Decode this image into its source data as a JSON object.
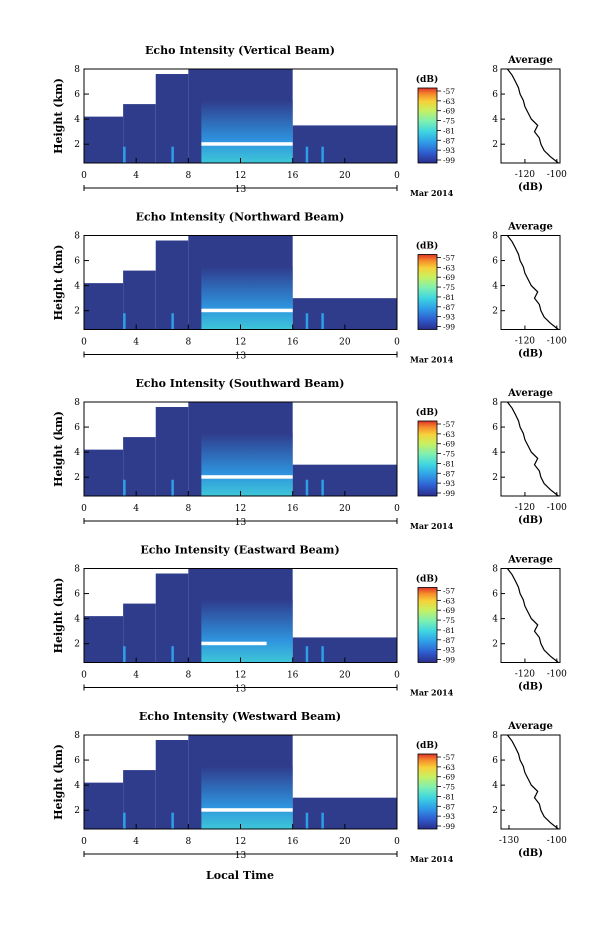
{
  "figure": {
    "xlabel_bottom": "Local Time",
    "date_label": "Mar 2014",
    "date_tick": "13",
    "x_ticks": [
      "0",
      "4",
      "8",
      "12",
      "16",
      "20",
      "0"
    ],
    "y_ticks": [
      "2",
      "4",
      "6",
      "8"
    ],
    "ylabel": "Height (km)",
    "colorbar_unit": "(dB)",
    "colorbar_ticks": [
      "-57",
      "-63",
      "-69",
      "-75",
      "-81",
      "-87",
      "-93",
      "-99"
    ],
    "colors": {
      "background_echo": "#2f3c8c",
      "axis": "#000000",
      "colormap": [
        "#2a2d8a",
        "#2f5fd0",
        "#2f9ee8",
        "#3fd6e0",
        "#7ff0b0",
        "#c8f060",
        "#f6d23a",
        "#f58a2a",
        "#e0312a"
      ]
    },
    "panels": [
      {
        "title": "Echo Intensity (Vertical Beam)",
        "avg_title": "Average",
        "avg_xticks": [
          "-120",
          "-100"
        ],
        "avg_yticks": [
          "2",
          "4",
          "6",
          "8"
        ],
        "avg_xlabel": "(dB)"
      },
      {
        "title": "Echo Intensity (Northward Beam)",
        "avg_title": "Average",
        "avg_xticks": [
          "-120",
          "-100"
        ],
        "avg_yticks": [
          "2",
          "4",
          "6",
          "8"
        ],
        "avg_xlabel": "(dB)"
      },
      {
        "title": "Echo Intensity (Southward Beam)",
        "avg_title": "Average",
        "avg_xticks": [
          "-120",
          "-100"
        ],
        "avg_yticks": [
          "2",
          "4",
          "6",
          "8"
        ],
        "avg_xlabel": "(dB)"
      },
      {
        "title": "Echo Intensity (Eastward Beam)",
        "avg_title": "Average",
        "avg_xticks": [
          "-120",
          "-100"
        ],
        "avg_yticks": [
          "2",
          "4",
          "6",
          "8"
        ],
        "avg_xlabel": "(dB)"
      },
      {
        "title": "Echo Intensity (Westward Beam)",
        "avg_title": "Average",
        "avg_xticks": [
          "-130",
          "-100"
        ],
        "avg_yticks": [
          "2",
          "4",
          "6",
          "8"
        ],
        "avg_xlabel": "(dB)"
      }
    ]
  },
  "chart_data": {
    "type": "heatmap",
    "x_range_hours": [
      0,
      24
    ],
    "y_range_km": [
      0.5,
      8
    ],
    "colorbar_range_db": [
      -99,
      -57
    ],
    "grid": false,
    "average_profile": {
      "type": "line",
      "height_km": [
        0.5,
        1.0,
        1.5,
        2.0,
        2.5,
        3.0,
        3.5,
        4.0,
        4.5,
        5.0,
        5.5,
        6.0,
        6.5,
        7.0,
        7.5,
        8.0
      ],
      "echo_db": [
        -99,
        -104,
        -108,
        -110,
        -111,
        -114,
        -112,
        -116,
        -118,
        -120,
        -121,
        -123,
        -124,
        -126,
        -128,
        -131
      ]
    },
    "panel_features": [
      {
        "beam": "Vertical",
        "bright_layer_km": 2.0,
        "bright_layer_hours": [
          9,
          16
        ],
        "echo_top_km_day": 8,
        "echo_top_km_night": 3.5
      },
      {
        "beam": "Northward",
        "bright_layer_km": 2.0,
        "bright_layer_hours": [
          9,
          16
        ],
        "echo_top_km_day": 8,
        "echo_top_km_night": 3
      },
      {
        "beam": "Southward",
        "bright_layer_km": 2.0,
        "bright_layer_hours": [
          9,
          16
        ],
        "echo_top_km_day": 8,
        "echo_top_km_night": 3
      },
      {
        "beam": "Eastward",
        "bright_layer_km": 2.0,
        "bright_layer_hours": [
          9,
          14
        ],
        "echo_top_km_day": 8,
        "echo_top_km_night": 2.5
      },
      {
        "beam": "Westward",
        "bright_layer_km": 2.0,
        "bright_layer_hours": [
          9,
          16
        ],
        "echo_top_km_day": 8,
        "echo_top_km_night": 3
      }
    ]
  }
}
